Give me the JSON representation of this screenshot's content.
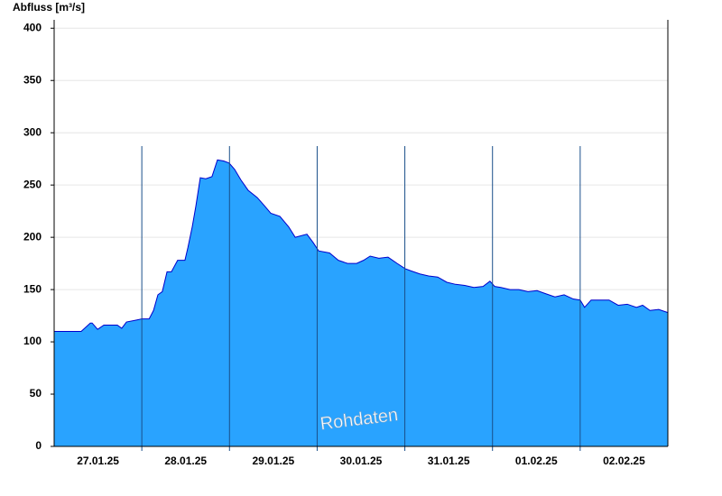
{
  "chart_data": {
    "type": "area",
    "title": "Abfluss [m³/s]",
    "annotation": "Rohdaten",
    "x": [
      0,
      7.4,
      9.9,
      10.4,
      11.9,
      13.6,
      17.3,
      18.5,
      19.8,
      22.7,
      24,
      26,
      27.2,
      28.4,
      29.6,
      30.9,
      32.1,
      33.8,
      35.8,
      36.6,
      37.8,
      38.8,
      40,
      41.5,
      43.2,
      44.7,
      46.4,
      47.9,
      49.4,
      51.1,
      53.1,
      55.6,
      57.6,
      59.3,
      61.8,
      64.2,
      66,
      69.2,
      70.9,
      72.4,
      75.4,
      77.8,
      80.3,
      82.8,
      84.7,
      86.5,
      88.9,
      91.4,
      93.9,
      96.1,
      97.6,
      100.1,
      102.5,
      105,
      107.5,
      109.9,
      112.4,
      114.9,
      117.4,
      119.3,
      120.6,
      122.3,
      124.8,
      127.2,
      129.7,
      132.2,
      134.6,
      137.1,
      139.6,
      142.1,
      144,
      145.2,
      147,
      149.5,
      151.9,
      154.4,
      156.9,
      159.4,
      161.1,
      163.1,
      165.5,
      168
    ],
    "values": [
      110,
      110,
      118,
      118,
      112,
      116,
      116,
      113,
      119,
      121,
      122,
      122,
      130,
      145,
      148,
      167,
      167,
      178,
      178,
      190,
      210,
      230,
      257,
      256,
      258,
      274,
      273,
      271,
      265,
      255,
      245,
      238,
      230,
      223,
      220,
      210,
      200,
      203,
      195,
      187,
      185,
      178,
      175,
      175,
      178,
      182,
      180,
      181,
      175,
      170,
      168,
      165,
      163,
      162,
      157,
      155,
      154,
      152,
      153,
      158,
      153,
      152,
      150,
      150,
      148,
      149,
      146,
      143,
      145,
      141,
      140,
      133,
      140,
      140,
      140,
      135,
      136,
      133,
      135,
      130,
      131,
      128
    ],
    "color": "#29a3ff",
    "line_color": "#0000cc",
    "xlim": [
      0,
      168
    ],
    "xticks": [
      {
        "value": 12,
        "label": "27.01.25"
      },
      {
        "value": 36,
        "label": "28.01.25"
      },
      {
        "value": 60,
        "label": "29.01.25"
      },
      {
        "value": 84,
        "label": "30.01.25"
      },
      {
        "value": 108,
        "label": "31.01.25"
      },
      {
        "value": 132,
        "label": "01.02.25"
      },
      {
        "value": 156,
        "label": "02.02.25"
      }
    ],
    "x_grid": [
      24,
      48,
      72,
      96,
      120,
      144
    ],
    "ylim": [
      0,
      408
    ],
    "yticks": [
      0,
      50,
      100,
      150,
      200,
      250,
      300,
      350,
      400
    ],
    "grid": true
  }
}
